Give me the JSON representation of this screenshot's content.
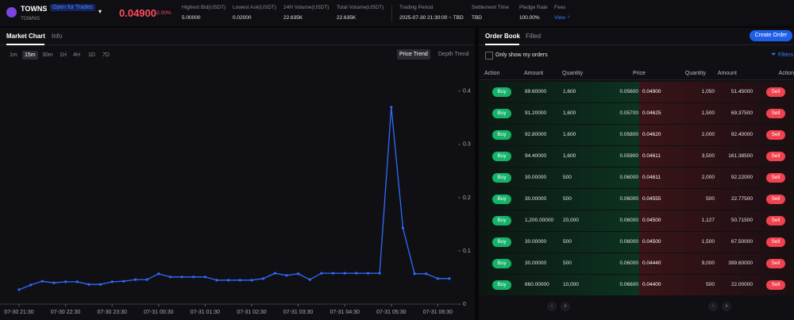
{
  "header": {
    "symbol": "TOWNS",
    "status": "Open for Trades",
    "subsymbol": "TOWNS",
    "price": "0.04900",
    "change": "-2.00%",
    "stats": [
      {
        "label": "Highest Bid(USDT)",
        "value": "5.00000"
      },
      {
        "label": "Lowest Ask(USDT)",
        "value": "0.02000"
      },
      {
        "label": "24H Volume(USDT)",
        "value": "22.635K"
      },
      {
        "label": "Total Volume(USDT)",
        "value": "22.635K"
      },
      {
        "label": "Trading Period",
        "value": "2025-07-30 21:30:00 ~ TBD"
      },
      {
        "label": "Settlement Time",
        "value": "TBD"
      },
      {
        "label": "Pledge Rate",
        "value": "100.00%"
      },
      {
        "label": "Fees",
        "value": "View"
      }
    ]
  },
  "left_tabs": [
    "Market Chart",
    "Info"
  ],
  "intervals": [
    "1m",
    "15m",
    "30m",
    "1H",
    "4H",
    "1D",
    "7D"
  ],
  "chart_modes": [
    "Price Trend",
    "Depth Trend"
  ],
  "chart_data": {
    "type": "line",
    "color": "#2f6bff",
    "categories": [
      "07-30 21:30",
      null,
      null,
      null,
      "07-30 22:30",
      null,
      null,
      null,
      "07-30 23:30",
      null,
      null,
      null,
      "07-31 00:30",
      null,
      null,
      null,
      "07-31 01:30",
      null,
      null,
      null,
      "07-31 02:30",
      null,
      null,
      null,
      "07-31 03:30",
      null,
      null,
      null,
      "07-31 04:30",
      null,
      null,
      null,
      "07-31 05:30",
      null,
      null,
      null,
      "07-31 06:30",
      null
    ],
    "values": [
      0.027,
      0.036,
      0.043,
      0.04,
      0.042,
      0.042,
      0.037,
      0.037,
      0.042,
      0.043,
      0.046,
      0.046,
      0.057,
      0.051,
      0.051,
      0.051,
      0.051,
      0.045,
      0.045,
      0.045,
      0.045,
      0.048,
      0.058,
      0.054,
      0.057,
      0.046,
      0.058,
      0.058,
      0.058,
      0.058,
      0.058,
      0.058,
      0.37,
      0.143,
      0.057,
      0.057,
      0.048,
      0.048
    ],
    "ylim": [
      0,
      0.44
    ],
    "yticks": [
      0,
      0.1,
      0.2,
      0.3,
      0.4
    ],
    "grid": false
  },
  "order_book": {
    "tabs": [
      "Order Book",
      "Filled"
    ],
    "create_order": "Create Order",
    "filter_toggle": "Only show my orders",
    "filters": "Filters",
    "columns": [
      "Action",
      "Amount",
      "Quantity",
      "Price",
      "Quantity",
      "Amount",
      "Action"
    ],
    "buy": "Buy",
    "sell": "Sell",
    "rows": [
      [
        "89.60000",
        "1,600",
        "0.05600",
        "0.04900",
        "1,050",
        "51.45000"
      ],
      [
        "91.20000",
        "1,600",
        "0.05700",
        "0.04625",
        "1,500",
        "69.37500"
      ],
      [
        "92.80000",
        "1,600",
        "0.05800",
        "0.04620",
        "2,000",
        "92.40000"
      ],
      [
        "94.40000",
        "1,600",
        "0.05900",
        "0.04611",
        "3,500",
        "161.38500"
      ],
      [
        "30.00000",
        "500",
        "0.06000",
        "0.04611",
        "2,000",
        "92.22000"
      ],
      [
        "30.00000",
        "500",
        "0.06000",
        "0.04555",
        "500",
        "22.77500"
      ],
      [
        "1,200.00000",
        "20,000",
        "0.06000",
        "0.04500",
        "1,127",
        "50.71500"
      ],
      [
        "30.00000",
        "500",
        "0.06000",
        "0.04500",
        "1,500",
        "67.50000"
      ],
      [
        "30.00000",
        "500",
        "0.06000",
        "0.04440",
        "9,000",
        "399.60000"
      ],
      [
        "660.00000",
        "10,000",
        "0.06600",
        "0.04400",
        "500",
        "22.00000"
      ]
    ]
  }
}
